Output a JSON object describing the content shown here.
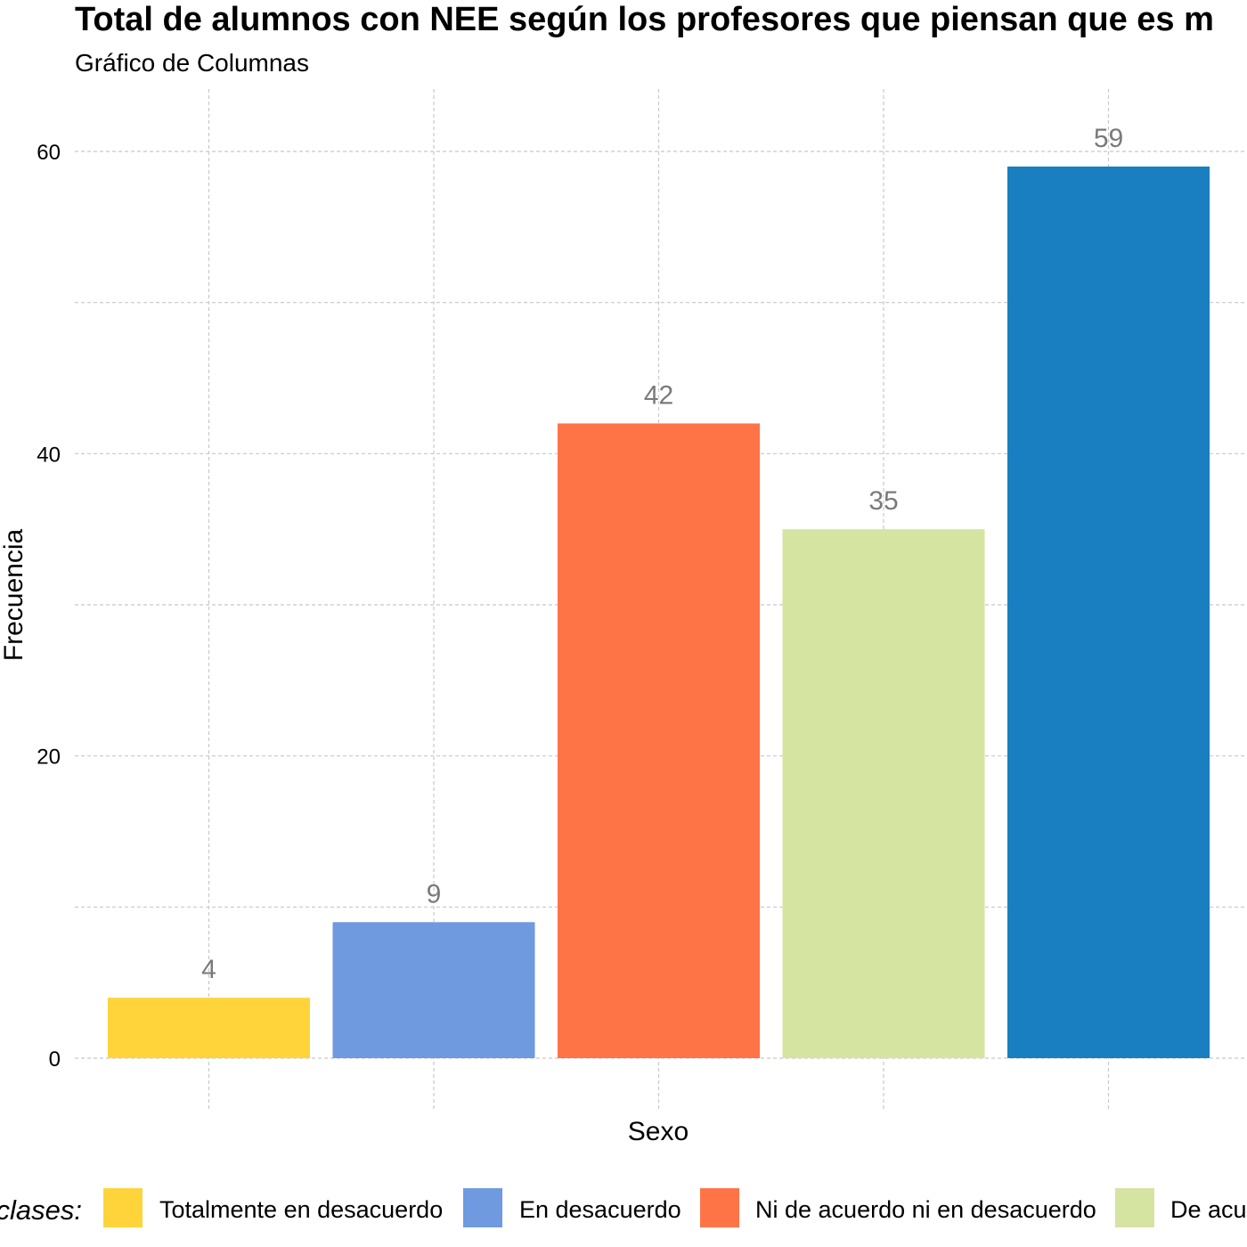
{
  "chart_data": {
    "type": "bar",
    "title": "Total de alumnos con NEE según los profesores que piensan que es m",
    "subtitle": "Gráfico de Columnas",
    "xlabel": "Sexo",
    "ylabel": "Frecuencia",
    "ylim": [
      0,
      60
    ],
    "yticks": [
      "0",
      "20",
      "40",
      "60"
    ],
    "grid": true,
    "legend_position": "bottom",
    "legend_title": "clases:",
    "categories": [
      "Totalmente en desacuerdo",
      "En desacuerdo",
      "Ni de acuerdo ni en desacuerdo",
      "De acu",
      ""
    ],
    "values": [
      4,
      9,
      42,
      35,
      59
    ],
    "value_labels": [
      "4",
      "9",
      "42",
      "35",
      "59"
    ],
    "colors": [
      "#FFD43B",
      "#6F9AE0",
      "#FF7447",
      "#D6E4A1",
      "#197FC0"
    ],
    "legend_entries": [
      {
        "label": "Totalmente en desacuerdo",
        "color": "#FFD43B"
      },
      {
        "label": "En desacuerdo",
        "color": "#6F9AE0"
      },
      {
        "label": "Ni de acuerdo ni en desacuerdo",
        "color": "#FF7447"
      },
      {
        "label": "De acu",
        "color": "#D6E4A1"
      }
    ]
  }
}
